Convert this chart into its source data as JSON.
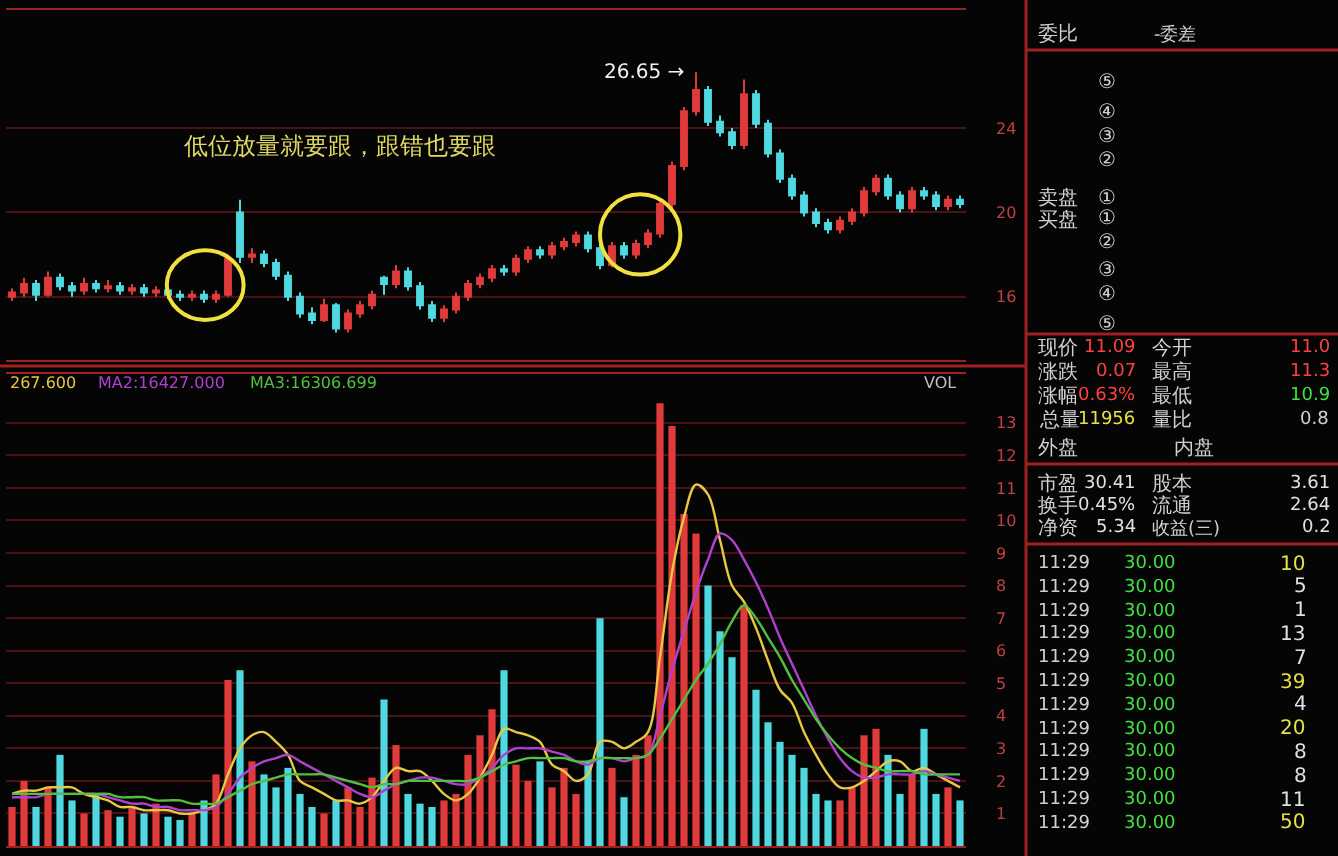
{
  "chart_data": [
    {
      "type": "candlestick",
      "categories": [
        null,
        null,
        null,
        null,
        null,
        null,
        null,
        null,
        null,
        null,
        null,
        null,
        null,
        null,
        null,
        null,
        null,
        null,
        null,
        null,
        null,
        null,
        null,
        null,
        null,
        null,
        null,
        null,
        null,
        null,
        null,
        null,
        null,
        null,
        null,
        null,
        null,
        null,
        null,
        null,
        null,
        null,
        null,
        null,
        null,
        null,
        null,
        null,
        null,
        null,
        null,
        null,
        null,
        null,
        null,
        null,
        null,
        null,
        null,
        null,
        null,
        null,
        null,
        null,
        null,
        null,
        null,
        null,
        null,
        null,
        null,
        null,
        null,
        null,
        null,
        null,
        null,
        null,
        null,
        null
      ],
      "ohlc": [
        [
          16.0,
          16.4,
          15.8,
          16.2
        ],
        [
          16.2,
          16.9,
          16.0,
          16.6
        ],
        [
          16.6,
          16.8,
          15.8,
          16.1
        ],
        [
          16.1,
          17.2,
          16.0,
          16.9
        ],
        [
          16.9,
          17.1,
          16.3,
          16.5
        ],
        [
          16.5,
          16.7,
          16.0,
          16.3
        ],
        [
          16.3,
          16.9,
          16.1,
          16.6
        ],
        [
          16.6,
          16.8,
          16.2,
          16.4
        ],
        [
          16.4,
          16.8,
          16.2,
          16.5
        ],
        [
          16.5,
          16.7,
          16.1,
          16.3
        ],
        [
          16.3,
          16.6,
          16.1,
          16.4
        ],
        [
          16.4,
          16.6,
          16.0,
          16.2
        ],
        [
          16.2,
          16.5,
          16.0,
          16.3
        ],
        [
          16.3,
          16.5,
          15.9,
          16.1
        ],
        [
          16.1,
          16.3,
          15.8,
          16.0
        ],
        [
          16.0,
          16.3,
          15.8,
          16.1
        ],
        [
          16.1,
          16.3,
          15.7,
          15.9
        ],
        [
          15.9,
          16.3,
          15.7,
          16.1
        ],
        [
          16.1,
          18.0,
          16.0,
          17.8
        ],
        [
          20.0,
          20.6,
          17.6,
          17.9
        ],
        [
          17.9,
          18.3,
          17.6,
          18.0
        ],
        [
          18.0,
          18.2,
          17.4,
          17.6
        ],
        [
          17.6,
          17.8,
          16.8,
          17.0
        ],
        [
          17.0,
          17.2,
          15.8,
          16.0
        ],
        [
          16.0,
          16.2,
          15.0,
          15.2
        ],
        [
          15.2,
          15.5,
          14.7,
          14.9
        ],
        [
          14.9,
          15.9,
          14.8,
          15.6
        ],
        [
          15.6,
          15.7,
          14.3,
          14.5
        ],
        [
          14.5,
          15.4,
          14.3,
          15.2
        ],
        [
          15.2,
          15.8,
          15.0,
          15.6
        ],
        [
          15.6,
          16.3,
          15.4,
          16.1
        ],
        [
          16.9,
          17.0,
          16.1,
          16.6
        ],
        [
          16.6,
          17.5,
          16.4,
          17.2
        ],
        [
          17.2,
          17.4,
          16.3,
          16.5
        ],
        [
          16.5,
          16.7,
          15.4,
          15.6
        ],
        [
          15.6,
          15.8,
          14.8,
          15.0
        ],
        [
          15.0,
          15.6,
          14.8,
          15.4
        ],
        [
          15.4,
          16.2,
          15.2,
          16.0
        ],
        [
          16.0,
          16.8,
          15.8,
          16.6
        ],
        [
          16.6,
          17.1,
          16.4,
          16.9
        ],
        [
          16.9,
          17.5,
          16.7,
          17.3
        ],
        [
          17.3,
          17.5,
          17.0,
          17.2
        ],
        [
          17.2,
          18.0,
          17.0,
          17.8
        ],
        [
          17.8,
          18.4,
          17.6,
          18.2
        ],
        [
          18.2,
          18.4,
          17.8,
          18.0
        ],
        [
          18.0,
          18.6,
          17.8,
          18.4
        ],
        [
          18.4,
          18.8,
          18.2,
          18.6
        ],
        [
          18.6,
          19.1,
          18.4,
          18.9
        ],
        [
          18.9,
          19.1,
          18.1,
          18.3
        ],
        [
          18.3,
          18.5,
          17.3,
          17.5
        ],
        [
          17.5,
          18.6,
          17.4,
          18.4
        ],
        [
          18.4,
          18.6,
          17.8,
          18.0
        ],
        [
          18.0,
          18.7,
          17.8,
          18.5
        ],
        [
          18.5,
          19.2,
          18.3,
          19.0
        ],
        [
          19.0,
          20.6,
          18.8,
          20.4
        ],
        [
          20.4,
          22.4,
          20.2,
          22.2
        ],
        [
          22.2,
          25.0,
          22.0,
          24.8
        ],
        [
          24.8,
          26.65,
          24.6,
          25.8
        ],
        [
          25.8,
          26.0,
          24.1,
          24.3
        ],
        [
          24.3,
          24.6,
          23.6,
          23.8
        ],
        [
          23.8,
          24.0,
          23.0,
          23.2
        ],
        [
          23.2,
          26.3,
          23.0,
          25.6
        ],
        [
          25.6,
          25.8,
          24.0,
          24.2
        ],
        [
          24.2,
          24.4,
          22.6,
          22.8
        ],
        [
          22.8,
          23.0,
          21.4,
          21.6
        ],
        [
          21.6,
          21.8,
          20.6,
          20.8
        ],
        [
          20.8,
          21.0,
          19.8,
          20.0
        ],
        [
          20.0,
          20.2,
          19.3,
          19.5
        ],
        [
          19.5,
          19.7,
          19.0,
          19.2
        ],
        [
          19.2,
          19.8,
          19.0,
          19.6
        ],
        [
          19.6,
          20.2,
          19.4,
          20.0
        ],
        [
          20.0,
          21.2,
          19.8,
          21.0
        ],
        [
          21.0,
          21.8,
          20.8,
          21.6
        ],
        [
          21.6,
          21.8,
          20.6,
          20.8
        ],
        [
          20.8,
          21.0,
          20.0,
          20.2
        ],
        [
          20.2,
          21.2,
          20.0,
          21.0
        ],
        [
          21.0,
          21.2,
          20.6,
          20.8
        ],
        [
          20.8,
          21.0,
          20.1,
          20.3
        ],
        [
          20.3,
          20.8,
          20.1,
          20.6
        ],
        [
          20.6,
          20.8,
          20.2,
          20.4
        ]
      ],
      "colors": [
        "#e03a3a",
        "#e03a3a",
        "#4fd8e0",
        "#e03a3a",
        "#4fd8e0",
        "#4fd8e0",
        "#e03a3a",
        "#4fd8e0",
        "#e03a3a",
        "#4fd8e0",
        "#e03a3a",
        "#4fd8e0",
        "#e03a3a",
        "#4fd8e0",
        "#4fd8e0",
        "#e03a3a",
        "#4fd8e0",
        "#e03a3a",
        "#e03a3a",
        "#4fd8e0",
        "#e03a3a",
        "#4fd8e0",
        "#4fd8e0",
        "#4fd8e0",
        "#4fd8e0",
        "#4fd8e0",
        "#e03a3a",
        "#4fd8e0",
        "#e03a3a",
        "#e03a3a",
        "#e03a3a",
        "#4fd8e0",
        "#e03a3a",
        "#4fd8e0",
        "#4fd8e0",
        "#4fd8e0",
        "#e03a3a",
        "#e03a3a",
        "#e03a3a",
        "#e03a3a",
        "#e03a3a",
        "#4fd8e0",
        "#e03a3a",
        "#e03a3a",
        "#4fd8e0",
        "#e03a3a",
        "#e03a3a",
        "#e03a3a",
        "#4fd8e0",
        "#4fd8e0",
        "#e03a3a",
        "#4fd8e0",
        "#e03a3a",
        "#e03a3a",
        "#e03a3a",
        "#e03a3a",
        "#e03a3a",
        "#e03a3a",
        "#4fd8e0",
        "#4fd8e0",
        "#4fd8e0",
        "#e03a3a",
        "#4fd8e0",
        "#4fd8e0",
        "#4fd8e0",
        "#4fd8e0",
        "#4fd8e0",
        "#4fd8e0",
        "#4fd8e0",
        "#e03a3a",
        "#e03a3a",
        "#e03a3a",
        "#e03a3a",
        "#4fd8e0",
        "#4fd8e0",
        "#e03a3a",
        "#4fd8e0",
        "#4fd8e0",
        "#e03a3a",
        "#4fd8e0"
      ],
      "ylim": [
        13,
        29.6
      ],
      "yticks": [
        16,
        20,
        24
      ],
      "grid": "y",
      "tick_labels": "y",
      "annotations": [
        "低位放量就要跟，跟错也要跟",
        "26.65 →"
      ]
    },
    {
      "type": "bar",
      "categories": [
        null,
        null,
        null,
        null,
        null,
        null,
        null,
        null,
        null,
        null,
        null,
        null,
        null,
        null,
        null,
        null,
        null,
        null,
        null,
        null,
        null,
        null,
        null,
        null,
        null,
        null,
        null,
        null,
        null,
        null,
        null,
        null,
        null,
        null,
        null,
        null,
        null,
        null,
        null,
        null,
        null,
        null,
        null,
        null,
        null,
        null,
        null,
        null,
        null,
        null,
        null,
        null,
        null,
        null,
        null,
        null,
        null,
        null,
        null,
        null,
        null,
        null,
        null,
        null,
        null,
        null,
        null,
        null,
        null,
        null,
        null,
        null,
        null,
        null,
        null,
        null,
        null,
        null,
        null,
        null
      ],
      "series": [
        {
          "type": "bar",
          "values": [
            1.2,
            2.0,
            1.2,
            1.8,
            2.8,
            1.4,
            1.0,
            1.6,
            1.1,
            0.9,
            1.2,
            1.0,
            1.3,
            0.9,
            0.8,
            1.0,
            1.4,
            2.2,
            5.1,
            5.4,
            2.6,
            2.2,
            1.8,
            2.4,
            1.6,
            1.2,
            1.0,
            1.4,
            1.8,
            1.2,
            2.1,
            4.5,
            3.1,
            1.6,
            1.3,
            1.2,
            1.4,
            1.6,
            2.8,
            3.4,
            4.2,
            5.4,
            2.5,
            2.0,
            2.6,
            1.8,
            2.4,
            1.6,
            2.6,
            7.0,
            2.4,
            1.5,
            2.8,
            3.4,
            13.6,
            12.9,
            10.2,
            9.6,
            8.0,
            6.6,
            5.8,
            7.4,
            4.8,
            3.8,
            3.2,
            2.8,
            2.4,
            1.6,
            1.4,
            1.4,
            1.8,
            3.4,
            3.6,
            2.8,
            1.6,
            2.2,
            3.6,
            1.6,
            1.8,
            1.4
          ],
          "colors": [
            "#e03a3a",
            "#e03a3a",
            "#4fd8e0",
            "#e03a3a",
            "#4fd8e0",
            "#4fd8e0",
            "#e03a3a",
            "#4fd8e0",
            "#e03a3a",
            "#4fd8e0",
            "#e03a3a",
            "#4fd8e0",
            "#e03a3a",
            "#4fd8e0",
            "#4fd8e0",
            "#e03a3a",
            "#4fd8e0",
            "#e03a3a",
            "#e03a3a",
            "#4fd8e0",
            "#e03a3a",
            "#4fd8e0",
            "#4fd8e0",
            "#4fd8e0",
            "#4fd8e0",
            "#4fd8e0",
            "#e03a3a",
            "#4fd8e0",
            "#e03a3a",
            "#e03a3a",
            "#e03a3a",
            "#4fd8e0",
            "#e03a3a",
            "#4fd8e0",
            "#4fd8e0",
            "#4fd8e0",
            "#e03a3a",
            "#e03a3a",
            "#e03a3a",
            "#e03a3a",
            "#e03a3a",
            "#4fd8e0",
            "#e03a3a",
            "#e03a3a",
            "#4fd8e0",
            "#e03a3a",
            "#e03a3a",
            "#e03a3a",
            "#4fd8e0",
            "#4fd8e0",
            "#e03a3a",
            "#4fd8e0",
            "#e03a3a",
            "#e03a3a",
            "#e03a3a",
            "#e03a3a",
            "#e03a3a",
            "#e03a3a",
            "#4fd8e0",
            "#4fd8e0",
            "#4fd8e0",
            "#e03a3a",
            "#4fd8e0",
            "#4fd8e0",
            "#4fd8e0",
            "#4fd8e0",
            "#4fd8e0",
            "#4fd8e0",
            "#4fd8e0",
            "#e03a3a",
            "#e03a3a",
            "#e03a3a",
            "#e03a3a",
            "#4fd8e0",
            "#4fd8e0",
            "#e03a3a",
            "#4fd8e0",
            "#4fd8e0",
            "#e03a3a",
            "#4fd8e0"
          ]
        },
        {
          "type": "line",
          "name": "267.600",
          "color": "#e8c840",
          "values": [
            1.6,
            1.7,
            1.7,
            1.8,
            1.8,
            1.8,
            1.6,
            1.5,
            1.4,
            1.2,
            1.2,
            1.1,
            1.1,
            1.1,
            1.0,
            1.0,
            1.1,
            1.3,
            2.2,
            3.0,
            3.4,
            3.5,
            3.2,
            2.8,
            2.0,
            1.8,
            1.6,
            1.4,
            1.4,
            1.3,
            1.5,
            2.0,
            2.4,
            2.3,
            2.3,
            2.0,
            1.6,
            1.4,
            1.6,
            2.1,
            2.8,
            3.6,
            3.5,
            3.4,
            3.2,
            2.5,
            2.3,
            2.0,
            2.2,
            3.2,
            3.2,
            3.0,
            3.2,
            3.5,
            5.8,
            8.4,
            10.1,
            11.1,
            10.8,
            9.4,
            8.0,
            7.5,
            6.7,
            5.7,
            4.8,
            4.4,
            3.5,
            2.8,
            2.2,
            1.8,
            1.8,
            2.0,
            2.3,
            2.6,
            2.6,
            2.3,
            2.4,
            2.2,
            2.0,
            1.8
          ]
        },
        {
          "type": "line",
          "name": "MA2:16427.000",
          "color": "#b040d0",
          "values": [
            1.5,
            1.5,
            1.5,
            1.6,
            1.6,
            1.6,
            1.6,
            1.6,
            1.5,
            1.4,
            1.3,
            1.3,
            1.2,
            1.2,
            1.1,
            1.1,
            1.1,
            1.2,
            1.6,
            2.1,
            2.4,
            2.6,
            2.7,
            2.8,
            2.6,
            2.4,
            2.2,
            2.0,
            1.8,
            1.6,
            1.5,
            1.7,
            1.9,
            2.0,
            2.1,
            2.1,
            2.0,
            1.9,
            1.9,
            2.1,
            2.4,
            2.8,
            3.0,
            3.0,
            3.0,
            2.9,
            2.8,
            2.6,
            2.5,
            2.7,
            2.7,
            2.6,
            2.7,
            2.8,
            4.0,
            5.4,
            6.6,
            7.8,
            8.8,
            9.6,
            9.4,
            8.8,
            8.1,
            7.3,
            6.4,
            5.6,
            4.8,
            4.0,
            3.3,
            2.7,
            2.3,
            2.1,
            2.1,
            2.2,
            2.2,
            2.2,
            2.3,
            2.2,
            2.1,
            2.0
          ]
        },
        {
          "type": "line",
          "name": "MA3:16306.699",
          "color": "#50c040",
          "values": [
            1.6,
            1.6,
            1.6,
            1.6,
            1.6,
            1.6,
            1.6,
            1.6,
            1.6,
            1.5,
            1.5,
            1.5,
            1.4,
            1.4,
            1.4,
            1.3,
            1.3,
            1.3,
            1.5,
            1.7,
            1.9,
            2.0,
            2.1,
            2.2,
            2.2,
            2.2,
            2.2,
            2.1,
            2.0,
            1.9,
            1.8,
            1.9,
            1.9,
            2.0,
            2.0,
            2.0,
            2.0,
            2.0,
            2.0,
            2.1,
            2.3,
            2.5,
            2.6,
            2.7,
            2.7,
            2.7,
            2.7,
            2.6,
            2.6,
            2.7,
            2.7,
            2.7,
            2.7,
            2.8,
            3.3,
            3.9,
            4.5,
            5.1,
            5.6,
            6.2,
            6.9,
            7.4,
            7.0,
            6.4,
            5.8,
            5.1,
            4.5,
            3.9,
            3.4,
            3.0,
            2.7,
            2.5,
            2.4,
            2.3,
            2.3,
            2.3,
            2.2,
            2.2,
            2.2,
            2.2
          ]
        }
      ],
      "ylim": [
        0,
        14.5
      ],
      "yticks": [
        1,
        2,
        3,
        4,
        5,
        6,
        7,
        8,
        9,
        10,
        11,
        12,
        13
      ],
      "grid": "y",
      "tick_labels": "y",
      "annotations": [
        "VOL"
      ]
    },
    {
      "type": "other",
      "annotations": [
        "委比",
        "-委差",
        "⑤",
        "④",
        "③",
        "②",
        "卖盘",
        "①",
        "买盘",
        "①",
        "②",
        "③",
        "④",
        "⑤",
        "现价",
        "11.09",
        "今开",
        "11.0",
        "涨跌",
        "0.07",
        "最高",
        "11.3",
        "涨幅",
        "0.63%",
        "最低",
        "10.9",
        "总量",
        "11956",
        "量比",
        "0.8",
        "外盘",
        "内盘",
        "市盈",
        "30.41",
        "股本",
        "3.61",
        "换手",
        "0.45%",
        "流通",
        "2.64",
        "净资",
        "5.34",
        "收益(三)",
        "0.2",
        "11:29",
        "30.00",
        "10",
        "11:29",
        "30.00",
        "5",
        "11:29",
        "30.00",
        "1",
        "11:29",
        "30.00",
        "13",
        "11:29",
        "30.00",
        "7",
        "11:29",
        "30.00",
        "39",
        "11:29",
        "30.00",
        "4",
        "11:29",
        "30.00",
        "20",
        "11:29",
        "30.00",
        "8",
        "11:29",
        "30.00",
        "8",
        "11:29",
        "30.00",
        "11",
        "11:29",
        "30.00",
        "50"
      ],
      "colors": [
        "#d0d0d0",
        "#d0d0d0",
        "#d0d0d0",
        "#d0d0d0",
        "#d0d0d0",
        "#d0d0d0",
        "#d0d0d0",
        "#d0d0d0",
        "#d0d0d0",
        "#d0d0d0",
        "#d0d0d0",
        "#d0d0d0",
        "#d0d0d0",
        "#d0d0d0",
        "#d0d0d0",
        "#ff4040",
        "#d0d0d0",
        "#ff4040",
        "#d0d0d0",
        "#ff4040",
        "#d0d0d0",
        "#ff4040",
        "#d0d0d0",
        "#ff4040",
        "#d0d0d0",
        "#40e040",
        "#d0d0d0",
        "#e8e040",
        "#d0d0d0",
        "#d0d0d0",
        "#d0d0d0",
        "#d0d0d0",
        "#d0d0d0",
        "#e0e0e0",
        "#d0d0d0",
        "#e0e0e0",
        "#d0d0d0",
        "#e0e0e0",
        "#d0d0d0",
        "#e0e0e0",
        "#d0d0d0",
        "#e0e0e0",
        "#d0d0d0",
        "#e0e0e0",
        "#d0d0d0",
        "#40e040",
        "#e8e040",
        "#d0d0d0",
        "#40e040",
        "#e0e0e0",
        "#d0d0d0",
        "#40e040",
        "#e0e0e0",
        "#d0d0d0",
        "#40e040",
        "#e0e0e0",
        "#d0d0d0",
        "#40e040",
        "#e0e0e0",
        "#d0d0d0",
        "#40e040",
        "#e8e040",
        "#d0d0d0",
        "#40e040",
        "#e0e0e0",
        "#d0d0d0",
        "#40e040",
        "#e8e040",
        "#d0d0d0",
        "#40e040",
        "#e0e0e0",
        "#d0d0d0",
        "#40e040",
        "#e0e0e0",
        "#d0d0d0",
        "#40e040",
        "#e0e0e0",
        "#d0d0d0",
        "#40e040",
        "#e8e040"
      ]
    }
  ]
}
